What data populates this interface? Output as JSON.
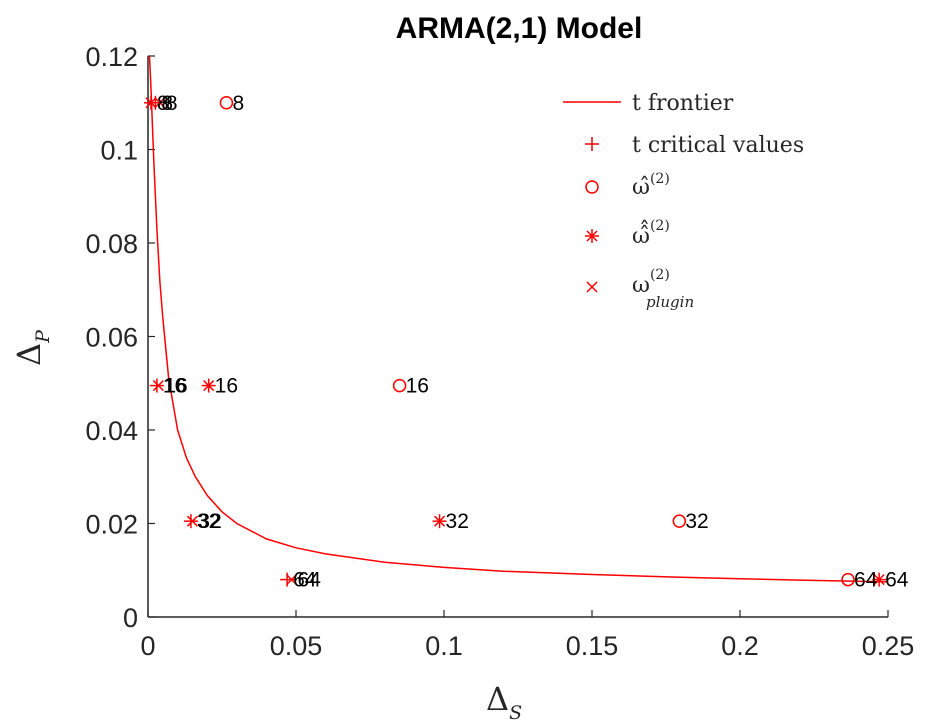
{
  "chart_data": {
    "type": "scatter",
    "title": "ARMA(2,1) Model",
    "xlabel": {
      "base": "Δ",
      "sub": "S"
    },
    "ylabel": {
      "base": "Δ",
      "sub": "P"
    },
    "xlim": [
      0,
      0.25
    ],
    "ylim": [
      0,
      0.12
    ],
    "x_ticks": [
      0,
      0.05,
      0.1,
      0.15,
      0.2,
      0.25
    ],
    "x_tick_labels": [
      "0",
      "0.05",
      "0.1",
      "0.15",
      "0.2",
      "0.25"
    ],
    "y_ticks": [
      0,
      0.02,
      0.04,
      0.06,
      0.08,
      0.1,
      0.12
    ],
    "y_tick_labels": [
      "0",
      "0.02",
      "0.04",
      "0.06",
      "0.08",
      "0.1",
      "0.12"
    ],
    "grid": false,
    "legend_position": "top-right",
    "color": "#ff0000",
    "series": [
      {
        "name": "t frontier",
        "marker": "line",
        "x": [
          0.0005,
          0.001,
          0.002,
          0.003,
          0.004,
          0.005,
          0.007,
          0.01,
          0.013,
          0.016,
          0.02,
          0.025,
          0.03,
          0.04,
          0.05,
          0.06,
          0.08,
          0.1,
          0.12,
          0.15,
          0.18,
          0.2,
          0.22,
          0.25
        ],
        "y": [
          0.12,
          0.113,
          0.097,
          0.083,
          0.072,
          0.064,
          0.051,
          0.04,
          0.034,
          0.03,
          0.026,
          0.0225,
          0.02,
          0.0167,
          0.0148,
          0.0135,
          0.0117,
          0.0106,
          0.0098,
          0.0091,
          0.0085,
          0.0082,
          0.0079,
          0.0075
        ]
      },
      {
        "name": "t critical values",
        "marker": "plus",
        "points": [
          {
            "x": 0.0025,
            "y": 0.11,
            "label": "8"
          },
          {
            "x": 0.003,
            "y": 0.0495,
            "label": "16"
          },
          {
            "x": 0.0145,
            "y": 0.0205,
            "label": "32"
          },
          {
            "x": 0.047,
            "y": 0.008,
            "label": "64"
          }
        ]
      },
      {
        "name": "ω̂(2)",
        "marker": "circle",
        "points": [
          {
            "x": 0.0265,
            "y": 0.11,
            "label": "8"
          },
          {
            "x": 0.085,
            "y": 0.0495,
            "label": "16"
          },
          {
            "x": 0.1795,
            "y": 0.0205,
            "label": "32"
          },
          {
            "x": 0.2365,
            "y": 0.008,
            "label": "64"
          }
        ]
      },
      {
        "name": "ω̂̂(2)",
        "marker": "asterisk",
        "points": [
          {
            "x": 0.001,
            "y": 0.11,
            "label": "8"
          },
          {
            "x": 0.0205,
            "y": 0.0495,
            "label": "16"
          },
          {
            "x": 0.0985,
            "y": 0.0205,
            "label": "32"
          },
          {
            "x": 0.247,
            "y": 0.008,
            "label": "64"
          }
        ]
      },
      {
        "name": "ω(2) plugin",
        "marker": "x",
        "points": [
          {
            "x": 0.004,
            "y": 0.11,
            "label": "8"
          },
          {
            "x": 0.0035,
            "y": 0.0495,
            "label": "16"
          },
          {
            "x": 0.015,
            "y": 0.0205,
            "label": "32"
          },
          {
            "x": 0.0485,
            "y": 0.008,
            "label": "64"
          }
        ]
      }
    ]
  },
  "legend": {
    "items": [
      {
        "key": "frontier",
        "text": "t frontier"
      },
      {
        "key": "critical",
        "text": "t critical values"
      },
      {
        "key": "omega_hat",
        "base": "ω̂",
        "sup": "(2)"
      },
      {
        "key": "omega_hathat",
        "base": "ω̂̂",
        "sup": "(2)"
      },
      {
        "key": "omega_plugin",
        "base": "ω",
        "sup": "(2)",
        "sub": "plugin"
      }
    ]
  }
}
